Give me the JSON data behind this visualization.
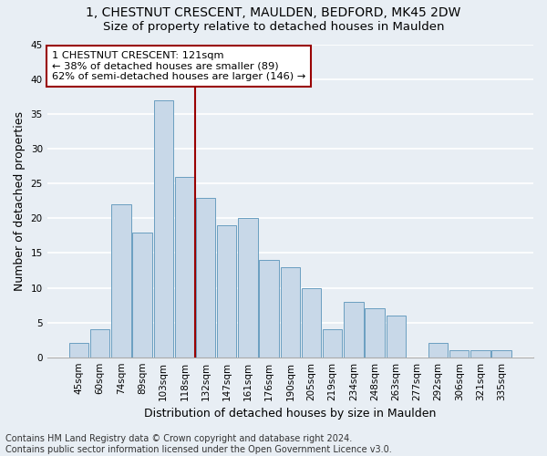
{
  "title_line1": "1, CHESTNUT CRESCENT, MAULDEN, BEDFORD, MK45 2DW",
  "title_line2": "Size of property relative to detached houses in Maulden",
  "xlabel": "Distribution of detached houses by size in Maulden",
  "ylabel": "Number of detached properties",
  "categories": [
    "45sqm",
    "60sqm",
    "74sqm",
    "89sqm",
    "103sqm",
    "118sqm",
    "132sqm",
    "147sqm",
    "161sqm",
    "176sqm",
    "190sqm",
    "205sqm",
    "219sqm",
    "234sqm",
    "248sqm",
    "263sqm",
    "277sqm",
    "292sqm",
    "306sqm",
    "321sqm",
    "335sqm"
  ],
  "values": [
    2,
    4,
    22,
    18,
    37,
    26,
    23,
    19,
    20,
    14,
    13,
    10,
    4,
    8,
    7,
    6,
    0,
    2,
    1,
    1,
    1
  ],
  "bar_color": "#c8d8e8",
  "bar_edge_color": "#6a9ec0",
  "vline_x": 5.5,
  "vline_color": "#990000",
  "annotation_line1": "1 CHESTNUT CRESCENT: 121sqm",
  "annotation_line2": "← 38% of detached houses are smaller (89)",
  "annotation_line3": "62% of semi-detached houses are larger (146) →",
  "annotation_box_color": "white",
  "annotation_box_edge_color": "#990000",
  "ylim": [
    0,
    45
  ],
  "yticks": [
    0,
    5,
    10,
    15,
    20,
    25,
    30,
    35,
    40,
    45
  ],
  "footer_text": "Contains HM Land Registry data © Crown copyright and database right 2024.\nContains public sector information licensed under the Open Government Licence v3.0.",
  "background_color": "#e8eef4",
  "grid_color": "#ffffff",
  "title_fontsize": 10,
  "subtitle_fontsize": 9.5,
  "axis_label_fontsize": 9,
  "tick_fontsize": 7.5,
  "footer_fontsize": 7
}
